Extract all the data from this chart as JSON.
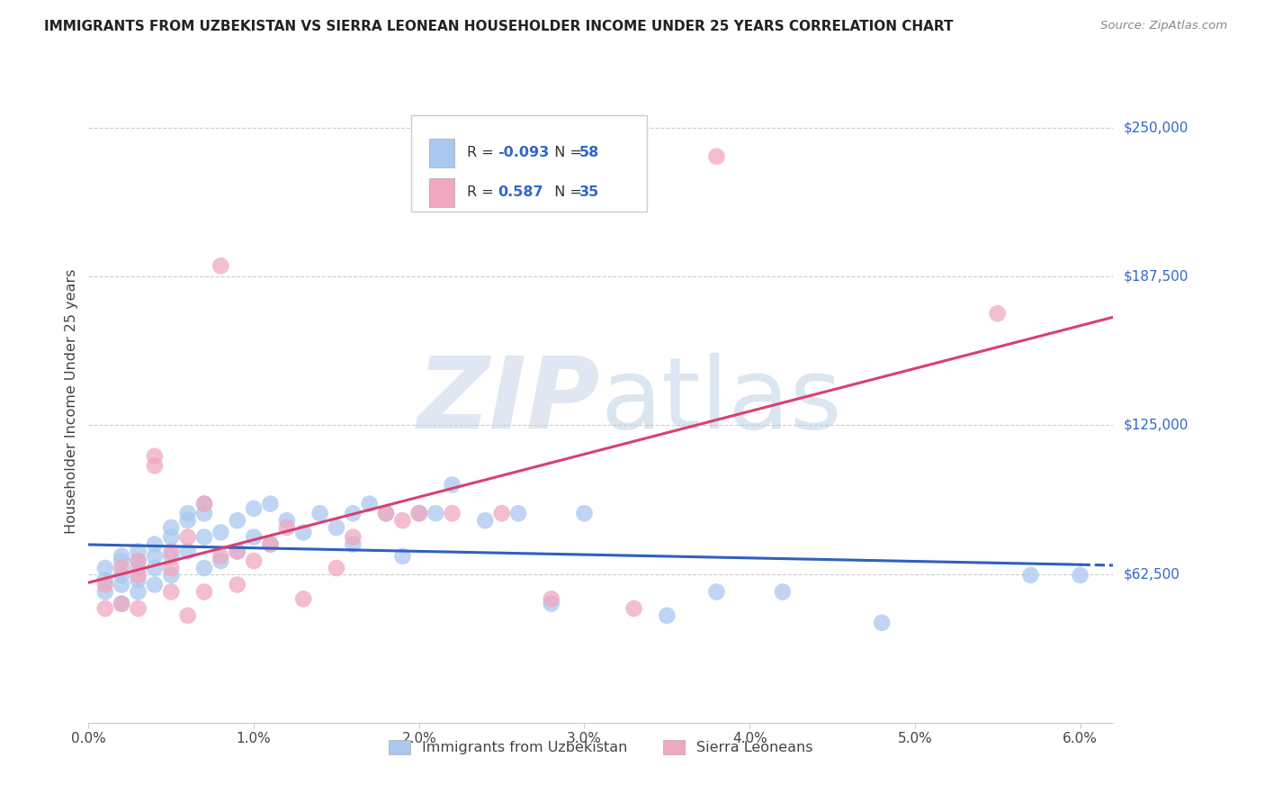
{
  "title": "IMMIGRANTS FROM UZBEKISTAN VS SIERRA LEONEAN HOUSEHOLDER INCOME UNDER 25 YEARS CORRELATION CHART",
  "source": "Source: ZipAtlas.com",
  "ylabel": "Householder Income Under 25 years",
  "ytick_labels": [
    "$250,000",
    "$187,500",
    "$125,000",
    "$62,500"
  ],
  "ytick_values": [
    250000,
    187500,
    125000,
    62500
  ],
  "ylim": [
    0,
    270000
  ],
  "xlim": [
    0.0,
    0.062
  ],
  "xtick_vals": [
    0.0,
    0.01,
    0.02,
    0.03,
    0.04,
    0.05,
    0.06
  ],
  "xtick_labels": [
    "0.0%",
    "1.0%",
    "2.0%",
    "3.0%",
    "4.0%",
    "5.0%",
    "6.0%"
  ],
  "legend_r_blue": "-0.093",
  "legend_n_blue": "58",
  "legend_r_pink": "0.587",
  "legend_n_pink": "35",
  "blue_color": "#aac8f0",
  "pink_color": "#f0a8c0",
  "trendline_blue": "#3060c0",
  "trendline_pink": "#d84070",
  "blue_scatter_x": [
    0.001,
    0.001,
    0.001,
    0.002,
    0.002,
    0.002,
    0.002,
    0.002,
    0.003,
    0.003,
    0.003,
    0.003,
    0.003,
    0.004,
    0.004,
    0.004,
    0.004,
    0.005,
    0.005,
    0.005,
    0.005,
    0.006,
    0.006,
    0.006,
    0.007,
    0.007,
    0.007,
    0.007,
    0.008,
    0.008,
    0.009,
    0.009,
    0.01,
    0.01,
    0.011,
    0.011,
    0.012,
    0.013,
    0.014,
    0.015,
    0.016,
    0.016,
    0.017,
    0.018,
    0.019,
    0.02,
    0.021,
    0.022,
    0.024,
    0.026,
    0.028,
    0.03,
    0.035,
    0.038,
    0.042,
    0.048,
    0.057,
    0.06
  ],
  "blue_scatter_y": [
    65000,
    60000,
    55000,
    70000,
    68000,
    62000,
    58000,
    50000,
    72000,
    68000,
    65000,
    60000,
    55000,
    75000,
    70000,
    65000,
    58000,
    82000,
    78000,
    70000,
    62000,
    88000,
    85000,
    72000,
    92000,
    88000,
    78000,
    65000,
    80000,
    68000,
    85000,
    72000,
    90000,
    78000,
    92000,
    75000,
    85000,
    80000,
    88000,
    82000,
    88000,
    75000,
    92000,
    88000,
    70000,
    88000,
    88000,
    100000,
    85000,
    88000,
    50000,
    88000,
    45000,
    55000,
    55000,
    42000,
    62000,
    62000
  ],
  "pink_scatter_x": [
    0.001,
    0.001,
    0.002,
    0.002,
    0.003,
    0.003,
    0.003,
    0.004,
    0.004,
    0.005,
    0.005,
    0.005,
    0.006,
    0.006,
    0.007,
    0.007,
    0.008,
    0.008,
    0.009,
    0.009,
    0.01,
    0.011,
    0.012,
    0.013,
    0.015,
    0.016,
    0.018,
    0.019,
    0.02,
    0.022,
    0.025,
    0.028,
    0.033,
    0.038,
    0.055
  ],
  "pink_scatter_y": [
    58000,
    48000,
    65000,
    50000,
    68000,
    62000,
    48000,
    112000,
    108000,
    72000,
    65000,
    55000,
    78000,
    45000,
    92000,
    55000,
    70000,
    192000,
    72000,
    58000,
    68000,
    75000,
    82000,
    52000,
    65000,
    78000,
    88000,
    85000,
    88000,
    88000,
    88000,
    52000,
    48000,
    238000,
    172000
  ]
}
